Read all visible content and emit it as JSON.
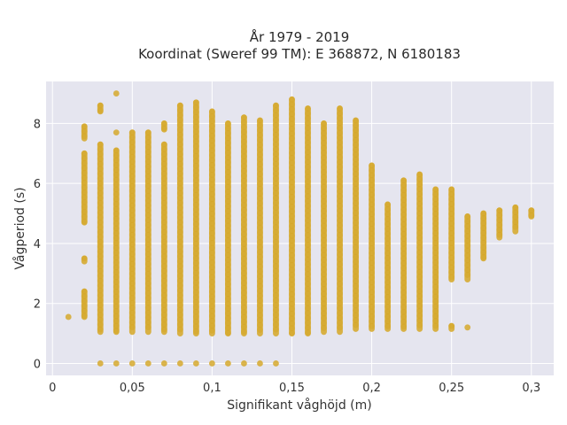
{
  "chart_data": {
    "type": "scatter",
    "title": "År 1979 - 2019",
    "subtitle": "Koordinat (Sweref 99 TM): E 368872, N 6180183",
    "xlabel": "Signifikant våghöjd (m)",
    "ylabel": "Vågperiod (s)",
    "xlim": [
      -0.004,
      0.314
    ],
    "ylim": [
      -0.4,
      9.4
    ],
    "x_ticks": [
      "0",
      "0,05",
      "0,1",
      "0,15",
      "0,2",
      "0,25",
      "0,3"
    ],
    "x_tick_values": [
      0,
      0.05,
      0.1,
      0.15,
      0.2,
      0.25,
      0.3
    ],
    "y_ticks": [
      "0",
      "2",
      "4",
      "6",
      "8"
    ],
    "y_tick_values": [
      0,
      2,
      4,
      6,
      8
    ],
    "grid": true,
    "marker_color": "#d4a520",
    "background_color": "#e5e5ef",
    "columns": [
      {
        "x": 0.01,
        "segments": [
          [
            1.55,
            1.55
          ]
        ]
      },
      {
        "x": 0.02,
        "segments": [
          [
            1.55,
            2.4
          ],
          [
            3.4,
            3.5
          ],
          [
            4.7,
            7.0
          ],
          [
            7.5,
            7.9
          ]
        ]
      },
      {
        "x": 0.03,
        "segments": [
          [
            0,
            0
          ],
          [
            1.05,
            7.3
          ],
          [
            8.4,
            8.6
          ]
        ]
      },
      {
        "x": 0.04,
        "segments": [
          [
            0,
            0
          ],
          [
            1.05,
            7.1
          ],
          [
            7.7,
            7.7
          ],
          [
            9.0,
            9.0
          ]
        ]
      },
      {
        "x": 0.05,
        "segments": [
          [
            0,
            0
          ],
          [
            1.05,
            7.7
          ]
        ]
      },
      {
        "x": 0.06,
        "segments": [
          [
            0,
            0
          ],
          [
            1.05,
            7.7
          ]
        ]
      },
      {
        "x": 0.07,
        "segments": [
          [
            0,
            0
          ],
          [
            1.05,
            7.3
          ],
          [
            7.8,
            8.0
          ]
        ]
      },
      {
        "x": 0.08,
        "segments": [
          [
            0,
            0
          ],
          [
            1.0,
            8.6
          ]
        ]
      },
      {
        "x": 0.09,
        "segments": [
          [
            0,
            0
          ],
          [
            1.0,
            8.7
          ]
        ]
      },
      {
        "x": 0.1,
        "segments": [
          [
            0,
            0
          ],
          [
            1.0,
            8.4
          ]
        ]
      },
      {
        "x": 0.11,
        "segments": [
          [
            0,
            0
          ],
          [
            1.0,
            8.0
          ]
        ]
      },
      {
        "x": 0.12,
        "segments": [
          [
            0,
            0
          ],
          [
            1.0,
            8.2
          ]
        ]
      },
      {
        "x": 0.13,
        "segments": [
          [
            0,
            0
          ],
          [
            1.0,
            8.1
          ]
        ]
      },
      {
        "x": 0.14,
        "segments": [
          [
            0,
            0
          ],
          [
            1.0,
            8.6
          ]
        ]
      },
      {
        "x": 0.15,
        "segments": [
          [
            1.0,
            8.8
          ]
        ]
      },
      {
        "x": 0.16,
        "segments": [
          [
            1.0,
            8.5
          ]
        ]
      },
      {
        "x": 0.17,
        "segments": [
          [
            1.05,
            8.0
          ]
        ]
      },
      {
        "x": 0.18,
        "segments": [
          [
            1.05,
            8.5
          ]
        ]
      },
      {
        "x": 0.19,
        "segments": [
          [
            1.15,
            8.1
          ]
        ]
      },
      {
        "x": 0.2,
        "segments": [
          [
            1.15,
            6.6
          ]
        ]
      },
      {
        "x": 0.21,
        "segments": [
          [
            1.15,
            5.3
          ]
        ]
      },
      {
        "x": 0.22,
        "segments": [
          [
            1.15,
            6.1
          ]
        ]
      },
      {
        "x": 0.23,
        "segments": [
          [
            1.15,
            6.3
          ]
        ]
      },
      {
        "x": 0.24,
        "segments": [
          [
            1.15,
            5.8
          ]
        ]
      },
      {
        "x": 0.25,
        "segments": [
          [
            1.15,
            1.25
          ],
          [
            2.8,
            5.8
          ]
        ]
      },
      {
        "x": 0.26,
        "segments": [
          [
            1.2,
            1.2
          ],
          [
            2.8,
            4.9
          ]
        ]
      },
      {
        "x": 0.27,
        "segments": [
          [
            3.5,
            5.0
          ]
        ]
      },
      {
        "x": 0.28,
        "segments": [
          [
            4.2,
            5.1
          ]
        ]
      },
      {
        "x": 0.29,
        "segments": [
          [
            4.4,
            5.2
          ]
        ]
      },
      {
        "x": 0.3,
        "segments": [
          [
            4.9,
            5.1
          ]
        ]
      }
    ]
  }
}
